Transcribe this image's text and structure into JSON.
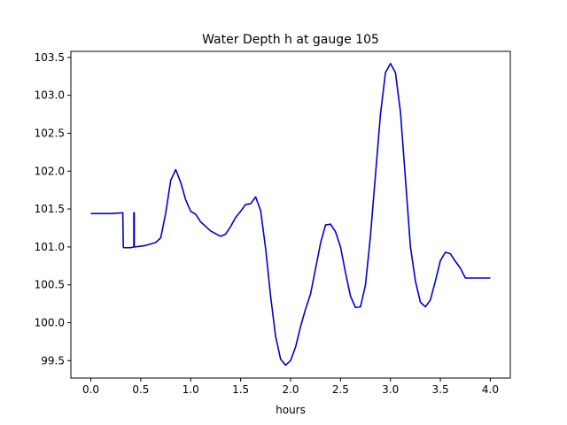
{
  "chart_data": {
    "type": "line",
    "title": "Water Depth h at gauge 105",
    "xlabel": "hours",
    "ylabel": "",
    "xlim": [
      -0.2,
      4.2
    ],
    "ylim": [
      99.27,
      103.58
    ],
    "xticks": [
      0.0,
      0.5,
      1.0,
      1.5,
      2.0,
      2.5,
      3.0,
      3.5,
      4.0
    ],
    "xtick_labels": [
      "0.0",
      "0.5",
      "1.0",
      "1.5",
      "2.0",
      "2.5",
      "3.0",
      "3.5",
      "4.0"
    ],
    "yticks": [
      99.5,
      100.0,
      100.5,
      101.0,
      101.5,
      102.0,
      102.5,
      103.0,
      103.5
    ],
    "ytick_labels": [
      "99.5",
      "100.0",
      "100.5",
      "101.0",
      "101.5",
      "102.0",
      "102.5",
      "103.0",
      "103.5"
    ],
    "grid": false,
    "legend": "none",
    "series": [
      {
        "color": "#0000cc",
        "x": [
          0.0,
          0.2,
          0.32,
          0.325,
          0.33,
          0.4,
          0.43,
          0.43,
          0.435,
          0.435,
          0.44,
          0.5,
          0.55,
          0.6,
          0.65,
          0.7,
          0.75,
          0.8,
          0.85,
          0.9,
          0.95,
          1.0,
          1.05,
          1.1,
          1.2,
          1.3,
          1.35,
          1.4,
          1.45,
          1.5,
          1.55,
          1.6,
          1.65,
          1.7,
          1.75,
          1.8,
          1.85,
          1.9,
          1.95,
          2.0,
          2.05,
          2.1,
          2.15,
          2.2,
          2.3,
          2.35,
          2.4,
          2.45,
          2.5,
          2.55,
          2.6,
          2.65,
          2.7,
          2.75,
          2.8,
          2.85,
          2.9,
          2.95,
          3.0,
          3.05,
          3.1,
          3.15,
          3.2,
          3.25,
          3.3,
          3.35,
          3.4,
          3.45,
          3.5,
          3.55,
          3.6,
          3.65,
          3.7,
          3.75,
          3.8,
          3.85,
          3.9,
          3.95,
          4.0
        ],
        "y": [
          101.44,
          101.44,
          101.45,
          101.0,
          100.99,
          100.99,
          101.0,
          101.45,
          101.45,
          101.0,
          101.0,
          101.01,
          101.02,
          101.04,
          101.06,
          101.12,
          101.45,
          101.88,
          102.02,
          101.85,
          101.62,
          101.47,
          101.43,
          101.33,
          101.21,
          101.14,
          101.17,
          101.27,
          101.39,
          101.47,
          101.56,
          101.57,
          101.66,
          101.48,
          100.98,
          100.35,
          99.82,
          99.52,
          99.44,
          99.5,
          99.68,
          99.95,
          100.18,
          100.38,
          101.05,
          101.29,
          101.3,
          101.2,
          101.0,
          100.66,
          100.35,
          100.2,
          100.21,
          100.5,
          101.15,
          101.95,
          102.75,
          103.3,
          103.42,
          103.3,
          102.78,
          101.9,
          101.0,
          100.55,
          100.27,
          100.21,
          100.3,
          100.55,
          100.82,
          100.93,
          100.91,
          100.81,
          100.72,
          100.59,
          100.59,
          100.59,
          100.59,
          100.59,
          100.59
        ]
      }
    ]
  }
}
